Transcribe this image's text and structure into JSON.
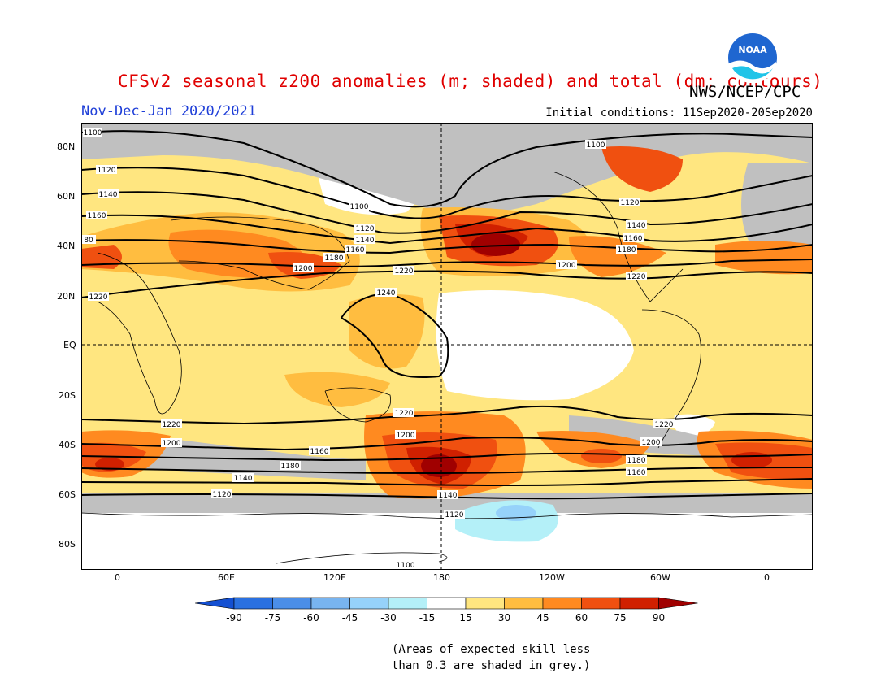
{
  "header": {
    "title": "CFSv2 seasonal z200 anomalies (m; shaded) and total (dm; contours)",
    "subtitle_left": "Nov-Dec-Jan 2020/2021",
    "subtitle_right": "Initial conditions: 11Sep2020-20Sep2020",
    "agency": "NWS/NCEP/CPC",
    "logo_text": "NOAA"
  },
  "map": {
    "lat_labels": [
      "80N",
      "60N",
      "40N",
      "20N",
      "EQ",
      "20S",
      "40S",
      "60S",
      "80S"
    ],
    "lon_labels": [
      "0",
      "60E",
      "120E",
      "180",
      "120W",
      "60W",
      "0"
    ],
    "contour_labels": [
      "1100",
      "1120",
      "1140",
      "1160",
      "1180",
      "1200",
      "1220",
      "1240"
    ],
    "partial_label": "80",
    "colors": {
      "grey_low_skill": "#c0c0c0",
      "pos15": "#ffe680",
      "pos30": "#ffbd40",
      "pos45": "#ff8a20",
      "pos60": "#f05010",
      "pos75": "#d02000",
      "pos90": "#a00000",
      "neg15": "#b4f0f8",
      "neg30": "#96d2fa"
    }
  },
  "colorbar": {
    "ticks": [
      "-90",
      "-75",
      "-60",
      "-45",
      "-30",
      "-15",
      "15",
      "30",
      "45",
      "60",
      "75",
      "90"
    ],
    "colors": [
      "#1450d2",
      "#2a70e0",
      "#4b8ee8",
      "#78b4f0",
      "#96d2fa",
      "#b4f0f8",
      "#ffffff",
      "#ffe680",
      "#ffbd40",
      "#ff8a20",
      "#f05010",
      "#d02000",
      "#a00000"
    ]
  },
  "footnote": {
    "line1": "(Areas of expected skill less",
    "line2": "than 0.3 are shaded in grey.)"
  }
}
